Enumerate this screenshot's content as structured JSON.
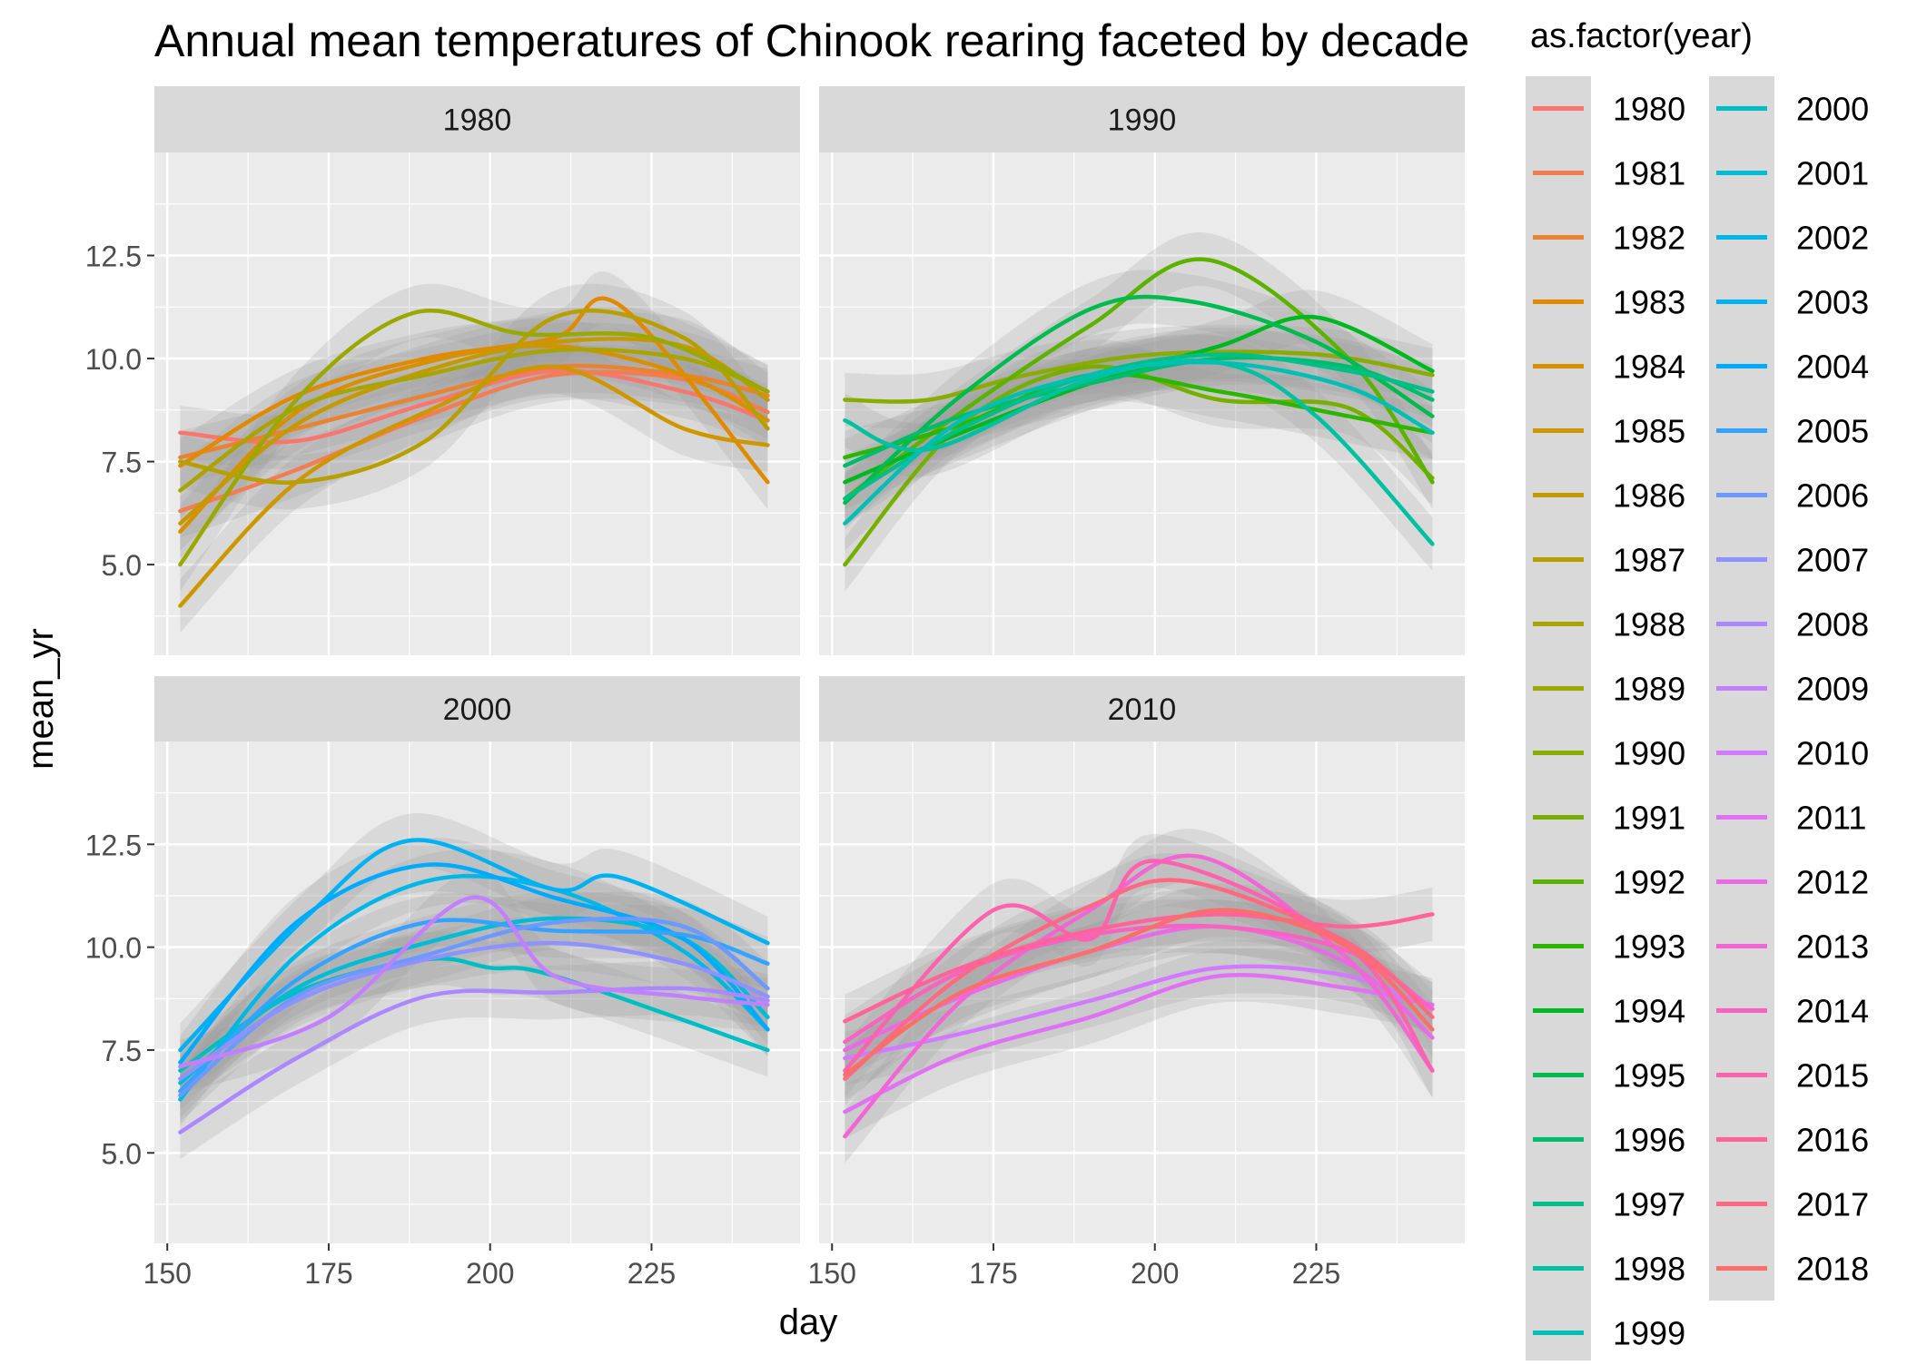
{
  "chart_data": {
    "type": "line",
    "title": "Annual mean temperatures of Chinook rearing faceted by decade",
    "xlabel": "day",
    "ylabel": "mean_yr",
    "xlim": [
      148,
      248
    ],
    "ylim": [
      2.8,
      15.0
    ],
    "x_ticks": [
      150,
      175,
      200,
      225
    ],
    "y_ticks": [
      5.0,
      7.5,
      10.0,
      12.5
    ],
    "y_tick_labels": [
      "5.0",
      "7.5",
      "10.0",
      "12.5"
    ],
    "grid": true,
    "smoothed": true,
    "confidence_bands": true,
    "legend": {
      "title": "as.factor(year)",
      "position": "right",
      "columns": 2
    },
    "colors": {
      "panel_bg": "#EBEBEB",
      "strip_bg": "#D9D9D9",
      "band": "#999999",
      "legend_key_bg": "#D9D9D9"
    },
    "panels": [
      {
        "label": "1980",
        "series": [
          {
            "name": "1980",
            "color": "#F8766D",
            "x": [
              152,
              170,
              190,
              210,
              230,
              243
            ],
            "y": [
              8.2,
              8.0,
              8.9,
              9.7,
              9.2,
              8.5
            ]
          },
          {
            "name": "1981",
            "color": "#F27D52",
            "x": [
              152,
              170,
              190,
              210,
              230,
              243
            ],
            "y": [
              6.3,
              7.3,
              8.6,
              9.6,
              9.5,
              8.7
            ]
          },
          {
            "name": "1982",
            "color": "#EA8331",
            "x": [
              152,
              170,
              190,
              210,
              230,
              243
            ],
            "y": [
              7.6,
              8.3,
              9.1,
              9.8,
              9.6,
              9.1
            ]
          },
          {
            "name": "1983",
            "color": "#E18A00",
            "x": [
              152,
              170,
              190,
              210,
              220,
              243
            ],
            "y": [
              7.4,
              9.1,
              10.0,
              10.5,
              11.3,
              7.0
            ]
          },
          {
            "name": "1984",
            "color": "#D89000",
            "x": [
              152,
              170,
              190,
              210,
              230,
              243
            ],
            "y": [
              5.8,
              8.7,
              9.9,
              10.3,
              9.6,
              8.5
            ]
          },
          {
            "name": "1985",
            "color": "#CE9700",
            "x": [
              152,
              170,
              190,
              210,
              230,
              243
            ],
            "y": [
              4.0,
              7.0,
              8.7,
              9.8,
              8.3,
              7.9
            ]
          },
          {
            "name": "1986",
            "color": "#C49A00",
            "x": [
              152,
              170,
              190,
              210,
              230,
              243
            ],
            "y": [
              6.0,
              8.4,
              9.7,
              10.4,
              10.3,
              9.0
            ]
          },
          {
            "name": "1987",
            "color": "#B79F00",
            "x": [
              152,
              170,
              190,
              210,
              230,
              243
            ],
            "y": [
              7.5,
              7.0,
              8.0,
              11.0,
              10.5,
              8.3
            ]
          },
          {
            "name": "1988",
            "color": "#A9A400",
            "x": [
              152,
              170,
              190,
              210,
              230,
              243
            ],
            "y": [
              6.8,
              8.8,
              9.6,
              10.2,
              10.0,
              9.2
            ]
          },
          {
            "name": "1989",
            "color": "#9AA800",
            "x": [
              152,
              170,
              188,
              205,
              225,
              243
            ],
            "y": [
              5.0,
              9.0,
              11.1,
              10.6,
              10.5,
              9.2
            ]
          }
        ]
      },
      {
        "label": "1990",
        "series": [
          {
            "name": "1990",
            "color": "#8AAB00",
            "x": [
              152,
              165,
              180,
              200,
              225,
              243
            ],
            "y": [
              9.0,
              9.0,
              9.6,
              10.1,
              10.1,
              9.6
            ]
          },
          {
            "name": "1991",
            "color": "#76AF00",
            "x": [
              152,
              170,
              190,
              210,
              230,
              243
            ],
            "y": [
              5.0,
              8.4,
              9.8,
              9.0,
              8.8,
              7.1
            ]
          },
          {
            "name": "1992",
            "color": "#5BB300",
            "x": [
              152,
              170,
              190,
              208,
              230,
              243
            ],
            "y": [
              6.6,
              8.7,
              10.8,
              12.4,
              10.0,
              7.0
            ]
          },
          {
            "name": "1993",
            "color": "#2BB600",
            "x": [
              152,
              170,
              190,
              210,
              230,
              243
            ],
            "y": [
              7.6,
              8.4,
              9.6,
              9.2,
              8.6,
              8.2
            ]
          },
          {
            "name": "1994",
            "color": "#00B81F",
            "x": [
              152,
              170,
              190,
              210,
              225,
              243
            ],
            "y": [
              7.0,
              8.2,
              9.4,
              10.3,
              11.0,
              9.7
            ]
          },
          {
            "name": "1995",
            "color": "#00BB4E",
            "x": [
              152,
              170,
              190,
              205,
              225,
              243
            ],
            "y": [
              6.5,
              9.1,
              11.2,
              11.4,
              10.4,
              8.6
            ]
          },
          {
            "name": "1996",
            "color": "#00BD6E",
            "x": [
              152,
              170,
              190,
              210,
              230,
              243
            ],
            "y": [
              7.4,
              8.6,
              9.4,
              10.0,
              9.8,
              9.0
            ]
          },
          {
            "name": "1997",
            "color": "#00BF88",
            "x": [
              152,
              170,
              190,
              210,
              230,
              243
            ],
            "y": [
              6.6,
              8.3,
              9.6,
              10.1,
              9.7,
              9.2
            ]
          },
          {
            "name": "1998",
            "color": "#00C1A0",
            "x": [
              152,
              165,
              190,
              210,
              225,
              243
            ],
            "y": [
              8.5,
              7.8,
              9.5,
              9.9,
              8.6,
              5.5
            ]
          },
          {
            "name": "1999",
            "color": "#00C0B5",
            "x": [
              152,
              170,
              190,
              210,
              230,
              243
            ],
            "y": [
              6.0,
              8.5,
              9.6,
              9.9,
              9.3,
              8.2
            ]
          }
        ]
      },
      {
        "label": "2000",
        "series": [
          {
            "name": "2000",
            "color": "#00BFC4",
            "x": [
              152,
              170,
              190,
              200,
              210,
              243
            ],
            "y": [
              7.0,
              8.9,
              9.7,
              9.5,
              9.3,
              7.5
            ]
          },
          {
            "name": "2001",
            "color": "#00BCD7",
            "x": [
              152,
              170,
              190,
              210,
              230,
              243
            ],
            "y": [
              6.7,
              9.0,
              10.1,
              10.7,
              10.2,
              8.3
            ]
          },
          {
            "name": "2002",
            "color": "#00B8E7",
            "x": [
              152,
              170,
              190,
              210,
              230,
              243
            ],
            "y": [
              6.3,
              9.8,
              11.6,
              11.4,
              9.9,
              8.0
            ]
          },
          {
            "name": "2003",
            "color": "#00B2F4",
            "x": [
              152,
              172,
              188,
              210,
              220,
              243
            ],
            "y": [
              7.5,
              10.8,
              12.6,
              11.4,
              11.7,
              10.1
            ]
          },
          {
            "name": "2004",
            "color": "#00AAFE",
            "x": [
              152,
              170,
              190,
              210,
              230,
              243
            ],
            "y": [
              7.2,
              10.6,
              12.0,
              11.2,
              10.2,
              8.0
            ]
          },
          {
            "name": "2005",
            "color": "#35A2FF",
            "x": [
              152,
              170,
              190,
              210,
              230,
              243
            ],
            "y": [
              6.5,
              9.2,
              10.6,
              10.4,
              10.3,
              9.6
            ]
          },
          {
            "name": "2006",
            "color": "#6B99FF",
            "x": [
              152,
              170,
              190,
              210,
              230,
              243
            ],
            "y": [
              6.4,
              8.8,
              9.8,
              10.6,
              10.5,
              9.0
            ]
          },
          {
            "name": "2007",
            "color": "#8F91FF",
            "x": [
              152,
              170,
              190,
              210,
              230,
              243
            ],
            "y": [
              6.8,
              8.7,
              9.7,
              10.1,
              9.6,
              8.8
            ]
          },
          {
            "name": "2008",
            "color": "#AC88FF",
            "x": [
              152,
              170,
              190,
              210,
              230,
              243
            ],
            "y": [
              5.5,
              7.3,
              8.8,
              8.9,
              9.0,
              8.7
            ]
          },
          {
            "name": "2009",
            "color": "#C280FF",
            "x": [
              152,
              175,
              197,
              210,
              230,
              243
            ],
            "y": [
              7.1,
              8.3,
              11.2,
              9.3,
              8.8,
              8.6
            ]
          }
        ]
      },
      {
        "label": "2010",
        "series": [
          {
            "name": "2010",
            "color": "#D279FF",
            "x": [
              152,
              170,
              190,
              210,
              230,
              243
            ],
            "y": [
              7.3,
              7.9,
              8.7,
              9.5,
              9.3,
              8.5
            ]
          },
          {
            "name": "2011",
            "color": "#E071F4",
            "x": [
              152,
              170,
              190,
              210,
              230,
              243
            ],
            "y": [
              6.0,
              7.4,
              8.3,
              9.3,
              9.0,
              8.6
            ]
          },
          {
            "name": "2012",
            "color": "#EA6AE5",
            "x": [
              152,
              170,
              190,
              210,
              230,
              243
            ],
            "y": [
              7.5,
              8.8,
              9.9,
              10.5,
              9.6,
              7.8
            ]
          },
          {
            "name": "2013",
            "color": "#F265D4",
            "x": [
              152,
              170,
              190,
              207,
              230,
              243
            ],
            "y": [
              5.4,
              8.7,
              10.9,
              12.2,
              9.7,
              7.0
            ]
          },
          {
            "name": "2014",
            "color": "#F863C1",
            "x": [
              152,
              170,
              190,
              210,
              230,
              243
            ],
            "y": [
              7.7,
              9.4,
              10.3,
              10.5,
              9.9,
              8.5
            ]
          },
          {
            "name": "2015",
            "color": "#FC62AE",
            "x": [
              152,
              175,
              190,
              200,
              230,
              243
            ],
            "y": [
              7.0,
              10.9,
              10.2,
              12.1,
              10.0,
              7.0
            ]
          },
          {
            "name": "2016",
            "color": "#FF6399",
            "x": [
              152,
              170,
              190,
              210,
              230,
              243
            ],
            "y": [
              8.2,
              9.5,
              10.4,
              10.8,
              10.5,
              10.8
            ]
          },
          {
            "name": "2017",
            "color": "#FF6883",
            "x": [
              152,
              170,
              190,
              205,
              230,
              243
            ],
            "y": [
              6.8,
              9.3,
              11.0,
              11.6,
              10.1,
              8.3
            ]
          },
          {
            "name": "2018",
            "color": "#FC6E6A",
            "x": [
              152,
              170,
              190,
              210,
              230,
              243
            ],
            "y": [
              6.9,
              8.9,
              9.9,
              10.9,
              10.0,
              8.0
            ]
          }
        ]
      }
    ],
    "legend_entries": [
      {
        "label": "1980",
        "color": "#F8766D"
      },
      {
        "label": "1981",
        "color": "#F27D52"
      },
      {
        "label": "1982",
        "color": "#EA8331"
      },
      {
        "label": "1983",
        "color": "#E18A00"
      },
      {
        "label": "1984",
        "color": "#D89000"
      },
      {
        "label": "1985",
        "color": "#CE9700"
      },
      {
        "label": "1986",
        "color": "#C49A00"
      },
      {
        "label": "1987",
        "color": "#B79F00"
      },
      {
        "label": "1988",
        "color": "#A9A400"
      },
      {
        "label": "1989",
        "color": "#9AA800"
      },
      {
        "label": "1990",
        "color": "#8AAB00"
      },
      {
        "label": "1991",
        "color": "#76AF00"
      },
      {
        "label": "1992",
        "color": "#5BB300"
      },
      {
        "label": "1993",
        "color": "#2BB600"
      },
      {
        "label": "1994",
        "color": "#00B81F"
      },
      {
        "label": "1995",
        "color": "#00BB4E"
      },
      {
        "label": "1996",
        "color": "#00BD6E"
      },
      {
        "label": "1997",
        "color": "#00BF88"
      },
      {
        "label": "1998",
        "color": "#00C1A0"
      },
      {
        "label": "1999",
        "color": "#00C0B5"
      },
      {
        "label": "2000",
        "color": "#00BFC4"
      },
      {
        "label": "2001",
        "color": "#00BCD7"
      },
      {
        "label": "2002",
        "color": "#00B8E7"
      },
      {
        "label": "2003",
        "color": "#00B2F4"
      },
      {
        "label": "2004",
        "color": "#00AAFE"
      },
      {
        "label": "2005",
        "color": "#35A2FF"
      },
      {
        "label": "2006",
        "color": "#6B99FF"
      },
      {
        "label": "2007",
        "color": "#8F91FF"
      },
      {
        "label": "2008",
        "color": "#AC88FF"
      },
      {
        "label": "2009",
        "color": "#C280FF"
      },
      {
        "label": "2010",
        "color": "#D279FF"
      },
      {
        "label": "2011",
        "color": "#E071F4"
      },
      {
        "label": "2012",
        "color": "#EA6AE5"
      },
      {
        "label": "2013",
        "color": "#F265D4"
      },
      {
        "label": "2014",
        "color": "#F863C1"
      },
      {
        "label": "2015",
        "color": "#FC62AE"
      },
      {
        "label": "2016",
        "color": "#FF6399"
      },
      {
        "label": "2017",
        "color": "#FF6883"
      },
      {
        "label": "2018",
        "color": "#FC6E6A"
      }
    ]
  }
}
